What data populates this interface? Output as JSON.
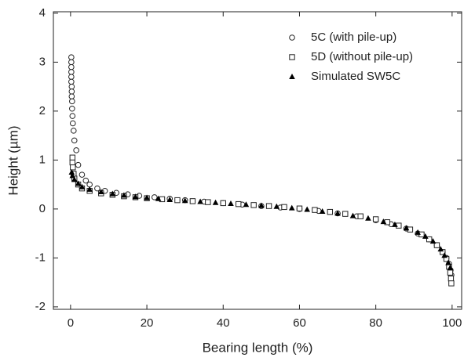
{
  "chart_data": {
    "type": "scatter",
    "x_label": "Bearing length (%)",
    "y_label": "Height (µm)",
    "xlim": [
      -4.5,
      102.5
    ],
    "ylim": [
      -2.05,
      4.03
    ],
    "xticks": [
      0,
      20,
      40,
      60,
      80,
      100
    ],
    "yticks": [
      -2,
      -1,
      0,
      1,
      2,
      3,
      4
    ],
    "legend": "upper-right",
    "series": [
      {
        "name": "5C (with pile-up)",
        "marker": "circle",
        "color": "#222222",
        "x": [
          0.2,
          0.2,
          0.2,
          0.2,
          0.2,
          0.2,
          0.3,
          0.3,
          0.3,
          0.4,
          0.4,
          0.5,
          0.6,
          0.8,
          1,
          1.5,
          2,
          3,
          4,
          5,
          7,
          9,
          12,
          15,
          18,
          22,
          26,
          30,
          35,
          40,
          45,
          50,
          55,
          60,
          65,
          70,
          75,
          80,
          84,
          88,
          91,
          94,
          96,
          97.5,
          98.5,
          99.2,
          99.6,
          99.8
        ],
        "values": [
          3.1,
          3.0,
          2.9,
          2.8,
          2.7,
          2.6,
          2.5,
          2.4,
          2.3,
          2.2,
          2.05,
          1.9,
          1.75,
          1.6,
          1.4,
          1.2,
          0.9,
          0.7,
          0.58,
          0.5,
          0.42,
          0.37,
          0.33,
          0.3,
          0.27,
          0.24,
          0.21,
          0.18,
          0.15,
          0.12,
          0.09,
          0.06,
          0.03,
          0,
          -0.04,
          -0.09,
          -0.15,
          -0.23,
          -0.31,
          -0.4,
          -0.5,
          -0.62,
          -0.74,
          -0.88,
          -1.0,
          -1.12,
          -1.25,
          -1.35
        ]
      },
      {
        "name": "5D (without pile-up)",
        "marker": "square",
        "color": "#222222",
        "x": [
          0.5,
          0.5,
          0.6,
          0.8,
          1,
          2,
          3,
          5,
          8,
          11,
          14,
          17,
          20,
          24,
          28,
          32,
          36,
          40,
          44,
          48,
          52,
          56,
          60,
          64,
          68,
          72,
          76,
          80,
          83,
          86,
          89,
          92,
          94,
          96,
          97.5,
          98.5,
          99.2,
          99.5,
          99.7,
          99.8
        ],
        "values": [
          1.05,
          0.95,
          0.85,
          0.72,
          0.62,
          0.5,
          0.42,
          0.37,
          0.32,
          0.29,
          0.26,
          0.24,
          0.22,
          0.2,
          0.18,
          0.16,
          0.14,
          0.12,
          0.1,
          0.08,
          0.06,
          0.04,
          0.01,
          -0.02,
          -0.06,
          -0.1,
          -0.15,
          -0.21,
          -0.27,
          -0.34,
          -0.42,
          -0.52,
          -0.62,
          -0.74,
          -0.88,
          -1.02,
          -1.18,
          -1.3,
          -1.42,
          -1.52
        ]
      },
      {
        "name": "Simulated SW5C",
        "marker": "triangle",
        "color": "#000000",
        "x": [
          0.3,
          0.5,
          1,
          2,
          3,
          5,
          8,
          11,
          14,
          17,
          20,
          23,
          26,
          30,
          34,
          38,
          42,
          46,
          50,
          54,
          58,
          62,
          66,
          70,
          74,
          78,
          82,
          85,
          88,
          91,
          93,
          95,
          97,
          98,
          99,
          99.5
        ],
        "values": [
          0.75,
          0.68,
          0.6,
          0.52,
          0.45,
          0.4,
          0.35,
          0.31,
          0.28,
          0.25,
          0.23,
          0.21,
          0.19,
          0.17,
          0.15,
          0.13,
          0.11,
          0.09,
          0.07,
          0.05,
          0.02,
          -0.01,
          -0.05,
          -0.09,
          -0.14,
          -0.19,
          -0.26,
          -0.32,
          -0.39,
          -0.48,
          -0.56,
          -0.66,
          -0.82,
          -0.95,
          -1.1,
          -1.2
        ]
      }
    ]
  }
}
